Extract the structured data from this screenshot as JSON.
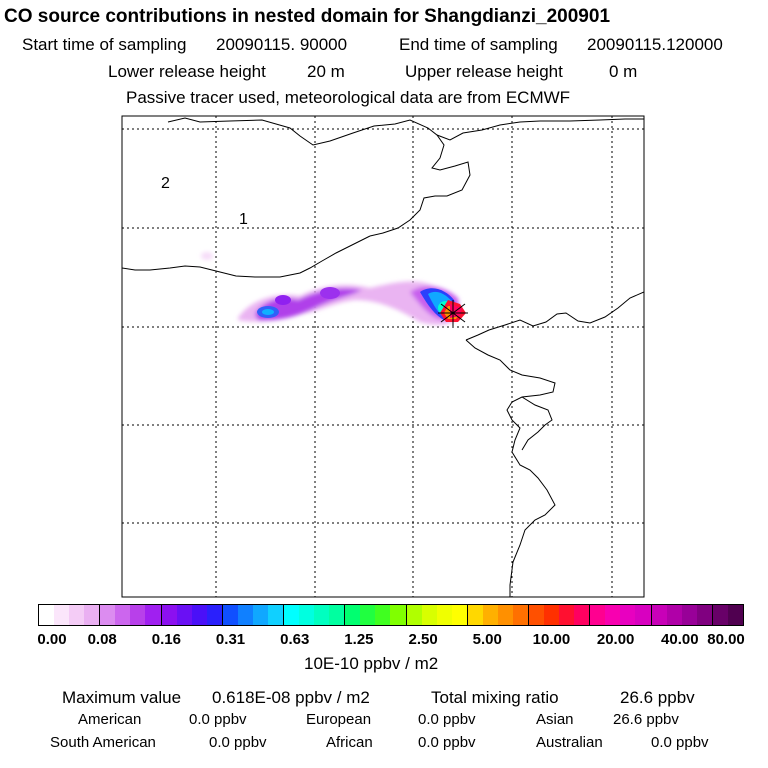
{
  "header": {
    "title": "CO  source contributions in nested domain for Shangdianzi_200901",
    "start_label": "Start time of sampling",
    "start_value": "20090115. 90000",
    "end_label": "End time of sampling",
    "end_value": "20090115.120000",
    "lower_label": "Lower release height",
    "lower_value": "20 m",
    "upper_label": "Upper release height",
    "upper_value": "0 m",
    "note": "Passive tracer used, meteorological data are from ECMWF"
  },
  "map": {
    "domain_labels": [
      "2",
      "1"
    ],
    "border_color": "#000000",
    "grid_style": "dotted"
  },
  "colorbar": {
    "ticks": [
      "0.00",
      "0.08",
      "0.16",
      "0.31",
      "0.63",
      "1.25",
      "2.50",
      "5.00",
      "10.00",
      "20.00",
      "40.00",
      "80.00"
    ],
    "unit": "10E-10 ppbv / m2",
    "colors": [
      "#ffffff",
      "#fbe6fb",
      "#f4ccf6",
      "#eab0f2",
      "#dc8cf0",
      "#cc66ee",
      "#b840ea",
      "#a020f0",
      "#8c10f0",
      "#6a10f4",
      "#4a10f8",
      "#2a20fc",
      "#1050ff",
      "#1080ff",
      "#10a8ff",
      "#10d0ff",
      "#00ffff",
      "#00ffe0",
      "#00ffc0",
      "#00ffa0",
      "#00ff70",
      "#20ff40",
      "#40ff20",
      "#80ff00",
      "#b0ff00",
      "#d8ff00",
      "#f0ff00",
      "#ffff00",
      "#ffd800",
      "#ffb000",
      "#ff9000",
      "#ff7000",
      "#ff5000",
      "#ff3000",
      "#ff1030",
      "#ff0060",
      "#ff0090",
      "#f800b0",
      "#e800c0",
      "#d800c0",
      "#c800b8",
      "#b000a8",
      "#980098",
      "#800080",
      "#680068",
      "#500050"
    ]
  },
  "stats": {
    "max_label": "Maximum value",
    "max_value": "0.618E-08 ppbv / m2",
    "total_label": "Total mixing ratio",
    "total_value": "26.6 ppbv",
    "regions": [
      {
        "name": "American",
        "value": "0.0 ppbv"
      },
      {
        "name": "European",
        "value": "0.0 ppbv"
      },
      {
        "name": "Asian",
        "value": "26.6 ppbv"
      },
      {
        "name": "South American",
        "value": "0.0 ppbv"
      },
      {
        "name": "African",
        "value": "0.0 ppbv"
      },
      {
        "name": "Australian",
        "value": "0.0 ppbv"
      }
    ]
  }
}
